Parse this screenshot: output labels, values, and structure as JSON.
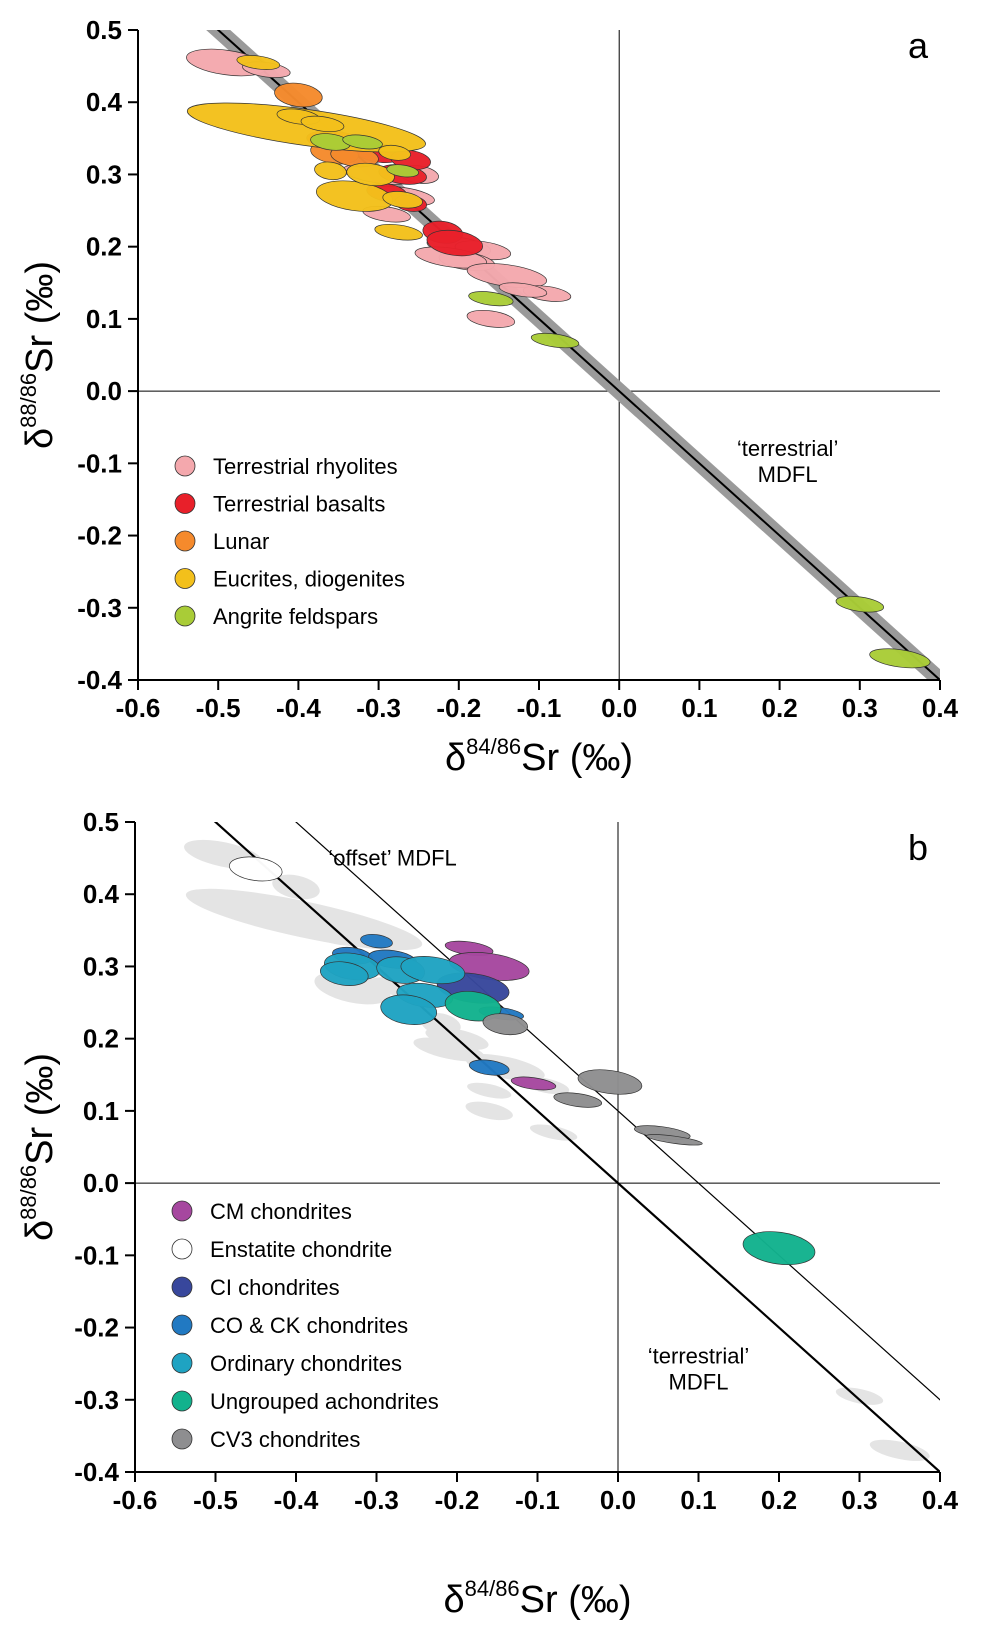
{
  "chart_data": [
    {
      "panel": "a",
      "type": "scatter",
      "xlabel": "δ84/86Sr (‰)",
      "ylabel": "δ88/86Sr (‰)",
      "xlabel_parts": {
        "delta": "δ",
        "sup": "84/86",
        "rest": "Sr (‰)"
      },
      "ylabel_parts": {
        "delta": "δ",
        "sup": "88/86",
        "rest": "Sr (‰)"
      },
      "xlim": [
        -0.6,
        0.4
      ],
      "ylim": [
        -0.4,
        0.5
      ],
      "xticks": [
        "-0.6",
        "-0.5",
        "-0.4",
        "-0.3",
        "-0.2",
        "-0.1",
        "0.0",
        "0.1",
        "0.2",
        "0.3",
        "0.4"
      ],
      "yticks": [
        "0.5",
        "0.4",
        "0.3",
        "0.2",
        "0.1",
        "0.0",
        "-0.1",
        "-0.2",
        "-0.3",
        "-0.4"
      ],
      "legend_position": "lower-left",
      "annotations": [
        {
          "id": "mdfl",
          "lines": [
            "‘terrestrial’",
            "MDFL"
          ],
          "x": 0.21,
          "y": -0.09
        }
      ],
      "lines": [
        {
          "name": "terrestrial MDFL",
          "slope": -1.0,
          "intercept": 0.0,
          "band_halfwidth": 0.015,
          "style": "band"
        }
      ],
      "series": [
        {
          "name": "Terrestrial rhyolites",
          "color": "#F4A8AD",
          "points": [
            {
              "x": -0.49,
              "y": 0.455,
              "rx": 0.05,
              "ry": 0.017
            },
            {
              "x": -0.44,
              "y": 0.445,
              "rx": 0.03,
              "ry": 0.01
            },
            {
              "x": -0.3,
              "y": 0.3,
              "rx": 0.045,
              "ry": 0.012
            },
            {
              "x": -0.27,
              "y": 0.27,
              "rx": 0.04,
              "ry": 0.012
            },
            {
              "x": -0.29,
              "y": 0.245,
              "rx": 0.03,
              "ry": 0.01
            },
            {
              "x": -0.25,
              "y": 0.3,
              "rx": 0.025,
              "ry": 0.012
            },
            {
              "x": -0.2,
              "y": 0.2,
              "rx": 0.04,
              "ry": 0.013
            },
            {
              "x": -0.17,
              "y": 0.195,
              "rx": 0.035,
              "ry": 0.012
            },
            {
              "x": -0.19,
              "y": 0.18,
              "rx": 0.035,
              "ry": 0.012
            },
            {
              "x": -0.21,
              "y": 0.185,
              "rx": 0.045,
              "ry": 0.013
            },
            {
              "x": -0.14,
              "y": 0.16,
              "rx": 0.05,
              "ry": 0.015
            },
            {
              "x": -0.09,
              "y": 0.135,
              "rx": 0.03,
              "ry": 0.01
            },
            {
              "x": -0.12,
              "y": 0.14,
              "rx": 0.03,
              "ry": 0.009
            },
            {
              "x": -0.16,
              "y": 0.1,
              "rx": 0.03,
              "ry": 0.011
            }
          ]
        },
        {
          "name": "Terrestrial basalts",
          "color": "#E8202A",
          "points": [
            {
              "x": -0.35,
              "y": 0.345,
              "rx": 0.04,
              "ry": 0.014
            },
            {
              "x": -0.3,
              "y": 0.33,
              "rx": 0.03,
              "ry": 0.013
            },
            {
              "x": -0.27,
              "y": 0.3,
              "rx": 0.03,
              "ry": 0.013
            },
            {
              "x": -0.26,
              "y": 0.32,
              "rx": 0.025,
              "ry": 0.013
            },
            {
              "x": -0.29,
              "y": 0.275,
              "rx": 0.025,
              "ry": 0.012
            },
            {
              "x": -0.26,
              "y": 0.26,
              "rx": 0.02,
              "ry": 0.011
            },
            {
              "x": -0.22,
              "y": 0.22,
              "rx": 0.025,
              "ry": 0.015
            },
            {
              "x": -0.205,
              "y": 0.205,
              "rx": 0.035,
              "ry": 0.017
            }
          ]
        },
        {
          "name": "Lunar",
          "color": "#F58A2C",
          "points": [
            {
              "x": -0.4,
              "y": 0.41,
              "rx": 0.03,
              "ry": 0.016
            },
            {
              "x": -0.355,
              "y": 0.33,
              "rx": 0.03,
              "ry": 0.015
            },
            {
              "x": -0.33,
              "y": 0.325,
              "rx": 0.03,
              "ry": 0.014
            }
          ]
        },
        {
          "name": "Eucrites, diogenites",
          "color": "#F3C01B",
          "points": [
            {
              "x": -0.39,
              "y": 0.365,
              "rx": 0.15,
              "ry": 0.025
            },
            {
              "x": -0.45,
              "y": 0.455,
              "rx": 0.027,
              "ry": 0.009
            },
            {
              "x": -0.4,
              "y": 0.38,
              "rx": 0.027,
              "ry": 0.01
            },
            {
              "x": -0.37,
              "y": 0.37,
              "rx": 0.027,
              "ry": 0.01
            },
            {
              "x": -0.33,
              "y": 0.27,
              "rx": 0.048,
              "ry": 0.02
            },
            {
              "x": -0.31,
              "y": 0.3,
              "rx": 0.03,
              "ry": 0.015
            },
            {
              "x": -0.36,
              "y": 0.305,
              "rx": 0.02,
              "ry": 0.012
            },
            {
              "x": -0.28,
              "y": 0.33,
              "rx": 0.02,
              "ry": 0.01
            },
            {
              "x": -0.27,
              "y": 0.265,
              "rx": 0.025,
              "ry": 0.011
            },
            {
              "x": -0.275,
              "y": 0.22,
              "rx": 0.03,
              "ry": 0.01
            }
          ]
        },
        {
          "name": "Angrite feldspars",
          "color": "#A9CC37",
          "points": [
            {
              "x": -0.36,
              "y": 0.345,
              "rx": 0.025,
              "ry": 0.011
            },
            {
              "x": -0.32,
              "y": 0.345,
              "rx": 0.025,
              "ry": 0.009
            },
            {
              "x": -0.27,
              "y": 0.305,
              "rx": 0.02,
              "ry": 0.008
            },
            {
              "x": -0.16,
              "y": 0.128,
              "rx": 0.028,
              "ry": 0.009
            },
            {
              "x": -0.08,
              "y": 0.07,
              "rx": 0.03,
              "ry": 0.009
            },
            {
              "x": 0.3,
              "y": -0.295,
              "rx": 0.03,
              "ry": 0.01
            },
            {
              "x": 0.35,
              "y": -0.37,
              "rx": 0.038,
              "ry": 0.012
            }
          ]
        }
      ]
    },
    {
      "panel": "b",
      "type": "scatter",
      "xlabel": "δ84/86Sr (‰)",
      "ylabel": "δ88/86Sr (‰)",
      "xlabel_parts": {
        "delta": "δ",
        "sup": "84/86",
        "rest": "Sr (‰)"
      },
      "ylabel_parts": {
        "delta": "δ",
        "sup": "88/86",
        "rest": "Sr (‰)"
      },
      "xlim": [
        -0.6,
        0.4
      ],
      "ylim": [
        -0.4,
        0.5
      ],
      "xticks": [
        "-0.6",
        "-0.5",
        "-0.4",
        "-0.3",
        "-0.2",
        "-0.1",
        "0.0",
        "0.1",
        "0.2",
        "0.3",
        "0.4"
      ],
      "yticks": [
        "0.5",
        "0.4",
        "0.3",
        "0.2",
        "0.1",
        "0.0",
        "-0.1",
        "-0.2",
        "-0.3",
        "-0.4"
      ],
      "legend_position": "lower-left",
      "annotations": [
        {
          "id": "offset",
          "lines": [
            "‘offset’ MDFL"
          ],
          "x": -0.28,
          "y": 0.44
        },
        {
          "id": "mdfl",
          "lines": [
            "‘terrestrial’",
            "MDFL"
          ],
          "x": 0.1,
          "y": -0.25
        }
      ],
      "lines": [
        {
          "name": "terrestrial MDFL",
          "slope": -1.0,
          "intercept": 0.0,
          "style": "thick"
        },
        {
          "name": "offset MDFL",
          "slope": -1.0,
          "intercept": 0.1,
          "style": "thin"
        }
      ],
      "background_series": {
        "name": "panel a data",
        "color": "#E4E4E4",
        "points": [
          {
            "x": -0.49,
            "y": 0.455,
            "rx": 0.05,
            "ry": 0.017
          },
          {
            "x": -0.4,
            "y": 0.41,
            "rx": 0.03,
            "ry": 0.016
          },
          {
            "x": -0.39,
            "y": 0.365,
            "rx": 0.15,
            "ry": 0.025
          },
          {
            "x": -0.35,
            "y": 0.345,
            "rx": 0.04,
            "ry": 0.014
          },
          {
            "x": -0.33,
            "y": 0.27,
            "rx": 0.048,
            "ry": 0.02
          },
          {
            "x": -0.3,
            "y": 0.3,
            "rx": 0.045,
            "ry": 0.012
          },
          {
            "x": -0.27,
            "y": 0.27,
            "rx": 0.04,
            "ry": 0.012
          },
          {
            "x": -0.22,
            "y": 0.22,
            "rx": 0.025,
            "ry": 0.015
          },
          {
            "x": -0.2,
            "y": 0.2,
            "rx": 0.04,
            "ry": 0.013
          },
          {
            "x": -0.21,
            "y": 0.185,
            "rx": 0.045,
            "ry": 0.013
          },
          {
            "x": -0.14,
            "y": 0.16,
            "rx": 0.05,
            "ry": 0.015
          },
          {
            "x": -0.09,
            "y": 0.135,
            "rx": 0.03,
            "ry": 0.01
          },
          {
            "x": -0.16,
            "y": 0.128,
            "rx": 0.028,
            "ry": 0.009
          },
          {
            "x": -0.16,
            "y": 0.1,
            "rx": 0.03,
            "ry": 0.011
          },
          {
            "x": -0.08,
            "y": 0.07,
            "rx": 0.03,
            "ry": 0.009
          },
          {
            "x": 0.3,
            "y": -0.295,
            "rx": 0.03,
            "ry": 0.01
          },
          {
            "x": 0.35,
            "y": -0.37,
            "rx": 0.038,
            "ry": 0.012
          }
        ]
      },
      "series": [
        {
          "name": "CM chondrites",
          "color": "#A6479F",
          "points": [
            {
              "x": -0.185,
              "y": 0.325,
              "rx": 0.03,
              "ry": 0.009
            },
            {
              "x": -0.16,
              "y": 0.3,
              "rx": 0.05,
              "ry": 0.018
            },
            {
              "x": -0.105,
              "y": 0.138,
              "rx": 0.028,
              "ry": 0.008
            }
          ]
        },
        {
          "name": "Enstatite chondrite",
          "color": "#FFFFFF",
          "points": [
            {
              "x": -0.45,
              "y": 0.435,
              "rx": 0.033,
              "ry": 0.016
            }
          ]
        },
        {
          "name": "CI chondrites",
          "color": "#38479C",
          "points": [
            {
              "x": -0.18,
              "y": 0.27,
              "rx": 0.045,
              "ry": 0.02
            }
          ]
        },
        {
          "name": "CO & CK chondrites",
          "color": "#2179C2",
          "points": [
            {
              "x": -0.3,
              "y": 0.335,
              "rx": 0.02,
              "ry": 0.009
            },
            {
              "x": -0.33,
              "y": 0.315,
              "rx": 0.025,
              "ry": 0.011
            },
            {
              "x": -0.28,
              "y": 0.31,
              "rx": 0.03,
              "ry": 0.012
            },
            {
              "x": -0.16,
              "y": 0.16,
              "rx": 0.025,
              "ry": 0.01
            },
            {
              "x": -0.145,
              "y": 0.235,
              "rx": 0.028,
              "ry": 0.008
            }
          ]
        },
        {
          "name": "Ordinary chondrites",
          "color": "#1FA3C2",
          "points": [
            {
              "x": -0.33,
              "y": 0.3,
              "rx": 0.035,
              "ry": 0.018
            },
            {
              "x": -0.34,
              "y": 0.29,
              "rx": 0.03,
              "ry": 0.016
            },
            {
              "x": -0.27,
              "y": 0.295,
              "rx": 0.03,
              "ry": 0.018
            },
            {
              "x": -0.23,
              "y": 0.295,
              "rx": 0.04,
              "ry": 0.018
            },
            {
              "x": -0.24,
              "y": 0.26,
              "rx": 0.035,
              "ry": 0.016
            },
            {
              "x": -0.26,
              "y": 0.24,
              "rx": 0.035,
              "ry": 0.02
            }
          ]
        },
        {
          "name": "Ungrouped achondrites",
          "color": "#12B28D",
          "points": [
            {
              "x": -0.18,
              "y": 0.245,
              "rx": 0.035,
              "ry": 0.02
            },
            {
              "x": 0.2,
              "y": -0.09,
              "rx": 0.045,
              "ry": 0.022
            }
          ]
        },
        {
          "name": "CV3 chondrites",
          "color": "#8E8E90",
          "points": [
            {
              "x": -0.14,
              "y": 0.22,
              "rx": 0.028,
              "ry": 0.014
            },
            {
              "x": -0.05,
              "y": 0.115,
              "rx": 0.03,
              "ry": 0.009
            },
            {
              "x": -0.01,
              "y": 0.14,
              "rx": 0.04,
              "ry": 0.016
            },
            {
              "x": 0.055,
              "y": 0.07,
              "rx": 0.035,
              "ry": 0.008
            },
            {
              "x": 0.07,
              "y": 0.06,
              "rx": 0.035,
              "ry": 0.005
            }
          ]
        }
      ]
    }
  ]
}
